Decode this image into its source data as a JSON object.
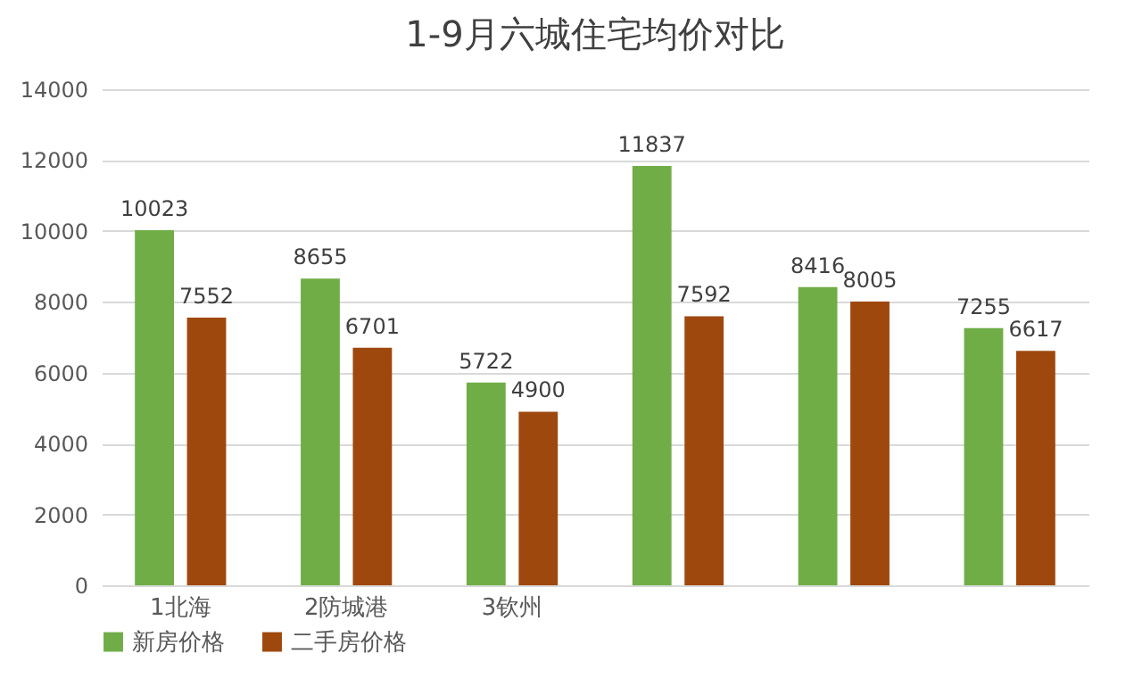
{
  "chart_data": {
    "type": "bar",
    "title": "1-9月六城住宅均价对比",
    "categories": [
      "1北海",
      "2防城港",
      "3钦州",
      null,
      null,
      null
    ],
    "series": [
      {
        "name": "新房价格",
        "color": "#70ad47",
        "values": [
          10023,
          8655,
          5722,
          11837,
          8416,
          7255
        ]
      },
      {
        "name": "二手房价格",
        "color": "#9e480e",
        "values": [
          7552,
          6701,
          4900,
          7592,
          8005,
          6617
        ]
      }
    ],
    "ylim": [
      0,
      14000
    ],
    "yticks": [
      0,
      2000,
      4000,
      6000,
      8000,
      10000,
      12000,
      14000
    ],
    "grid": "y",
    "legend": "bottom",
    "data_labels": true
  }
}
